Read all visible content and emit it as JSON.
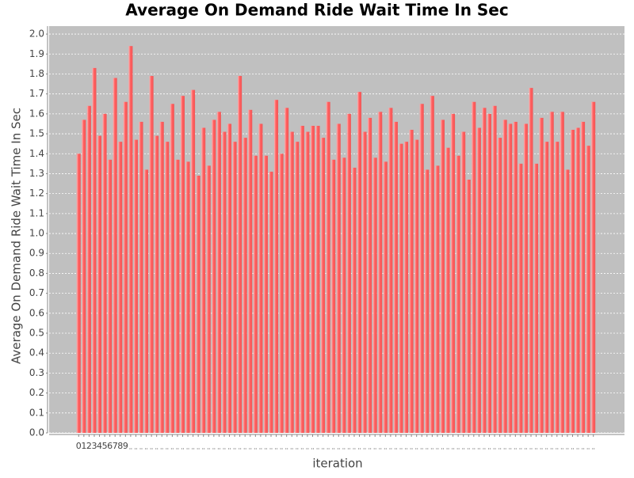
{
  "chart_data": {
    "type": "bar",
    "title": "Average On Demand Ride Wait Time In Sec",
    "x_label": "iteration",
    "y_label": "Average On Demand Ride Wait Time In Sec",
    "color": "#ff5a5a",
    "grid": true,
    "categories": [
      "0",
      "1",
      "2",
      "3",
      "4",
      "5",
      "6",
      "7",
      "8",
      "9",
      null,
      null,
      null,
      null,
      null,
      null,
      null,
      null,
      null,
      null,
      null,
      null,
      null,
      null,
      null,
      null,
      null,
      null,
      null,
      null,
      null,
      null,
      null,
      null,
      null,
      null,
      null,
      null,
      null,
      null,
      null,
      null,
      null,
      null,
      null,
      null,
      null,
      null,
      null,
      null,
      null,
      null,
      null,
      null,
      null,
      null,
      null,
      null,
      null,
      null,
      null,
      null,
      null,
      null,
      null,
      null,
      null,
      null,
      null,
      null,
      null,
      null,
      null,
      null,
      null,
      null,
      null,
      null,
      null,
      null,
      null,
      null,
      null,
      null,
      null,
      null,
      null,
      null,
      null,
      null,
      null,
      null,
      null,
      null,
      null,
      null,
      null,
      null,
      null,
      null
    ],
    "values": [
      1.4,
      1.57,
      1.64,
      1.83,
      1.49,
      1.6,
      1.37,
      1.78,
      1.46,
      1.66,
      1.94,
      1.47,
      1.56,
      1.32,
      1.79,
      1.49,
      1.56,
      1.46,
      1.65,
      1.37,
      1.69,
      1.36,
      1.72,
      1.29,
      1.53,
      1.34,
      1.57,
      1.61,
      1.51,
      1.55,
      1.46,
      1.79,
      1.48,
      1.62,
      1.39,
      1.55,
      1.39,
      1.31,
      1.67,
      1.4,
      1.63,
      1.51,
      1.46,
      1.54,
      1.51,
      1.54,
      1.54,
      1.48,
      1.66,
      1.37,
      1.55,
      1.38,
      1.6,
      1.33,
      1.71,
      1.51,
      1.58,
      1.38,
      1.61,
      1.36,
      1.63,
      1.56,
      1.45,
      1.46,
      1.52,
      1.47,
      1.65,
      1.32,
      1.69,
      1.34,
      1.57,
      1.43,
      1.6,
      1.39,
      1.51,
      1.27,
      1.66,
      1.53,
      1.63,
      1.6,
      1.64,
      1.48,
      1.57,
      1.55,
      1.56,
      1.35,
      1.55,
      1.73,
      1.35,
      1.58,
      1.46,
      1.61,
      1.46,
      1.61,
      1.32,
      1.52,
      1.53,
      1.56,
      1.44,
      1.66
    ],
    "ylim": [
      0,
      2.04
    ],
    "yticks": [
      {
        "value": 0,
        "label": "0.0"
      },
      0.1,
      0.2,
      0.3,
      0.4,
      0.5,
      0.6,
      0.7,
      0.8,
      0.9,
      {
        "value": 1,
        "label": "1.0"
      },
      1.1,
      1.2,
      1.3,
      1.4,
      1.5,
      1.6,
      1.7,
      1.8,
      1.9,
      {
        "value": 2,
        "label": "2.0"
      }
    ]
  }
}
